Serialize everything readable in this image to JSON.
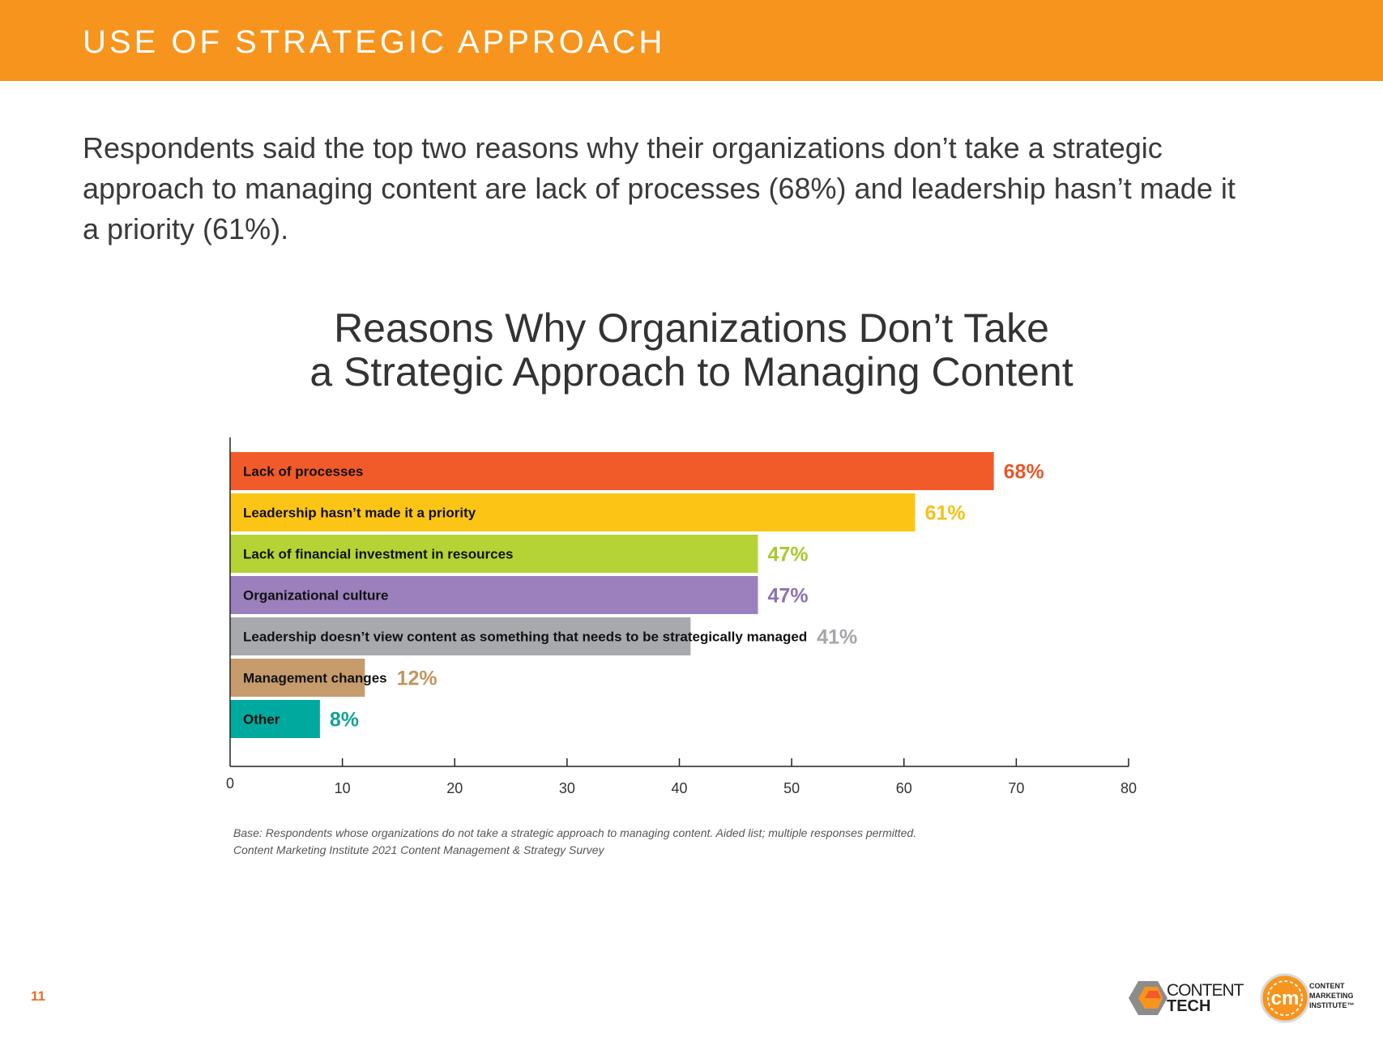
{
  "header": {
    "title": "USE OF STRATEGIC APPROACH"
  },
  "intro": {
    "text": "Respondents said the top two reasons why their organizations don’t take a strategic approach to managing content are lack of processes (68%) and leadership hasn’t made it a priority (61%)."
  },
  "chart_data": {
    "type": "bar",
    "orientation": "horizontal",
    "title_line1": "Reasons Why Organizations Don’t Take",
    "title_line2": "a Strategic Approach to Managing Content",
    "categories": [
      "Lack of processes",
      "Leadership hasn’t made it a priority",
      "Lack of financial investment in resources",
      "Organizational culture",
      "Leadership doesn’t view content as something that needs to be strategically managed",
      "Management changes",
      "Other"
    ],
    "values": [
      68,
      61,
      47,
      47,
      41,
      12,
      8
    ],
    "value_labels": [
      "68%",
      "61%",
      "47%",
      "47%",
      "41%",
      "12%",
      "8%"
    ],
    "colors": [
      "#f15a29",
      "#fcc516",
      "#b5d334",
      "#9b80bd",
      "#a7a9ac",
      "#c69c6d",
      "#00a99d"
    ],
    "label_colors": [
      "#e8582b",
      "#f5c116",
      "#a8c82d",
      "#8d71b1",
      "#a4a6a9",
      "#c2955f",
      "#10a295"
    ],
    "xlim": [
      0,
      80
    ],
    "xticks": [
      0,
      10,
      20,
      30,
      40,
      50,
      60,
      70,
      80
    ],
    "xtick_labels": [
      "0",
      "10",
      "20",
      "30",
      "40",
      "50",
      "60",
      "70",
      "80"
    ],
    "xlabel": "",
    "ylabel": "",
    "grid": false,
    "legend": "none"
  },
  "footnote": {
    "line1": "Base: Respondents whose organizations do not take a strategic approach to managing content. Aided list; multiple responses permitted.",
    "line2": "Content Marketing Institute 2021 Content Management & Strategy Survey"
  },
  "page": {
    "number": "11"
  },
  "logos": {
    "content_tech_line1": "CONTENT",
    "content_tech_line2": "TECH",
    "cmi_line1": "CONTENT",
    "cmi_line2": "MARKETING",
    "cmi_line3": "INSTITUTE™",
    "cmi_badge": "cm"
  }
}
